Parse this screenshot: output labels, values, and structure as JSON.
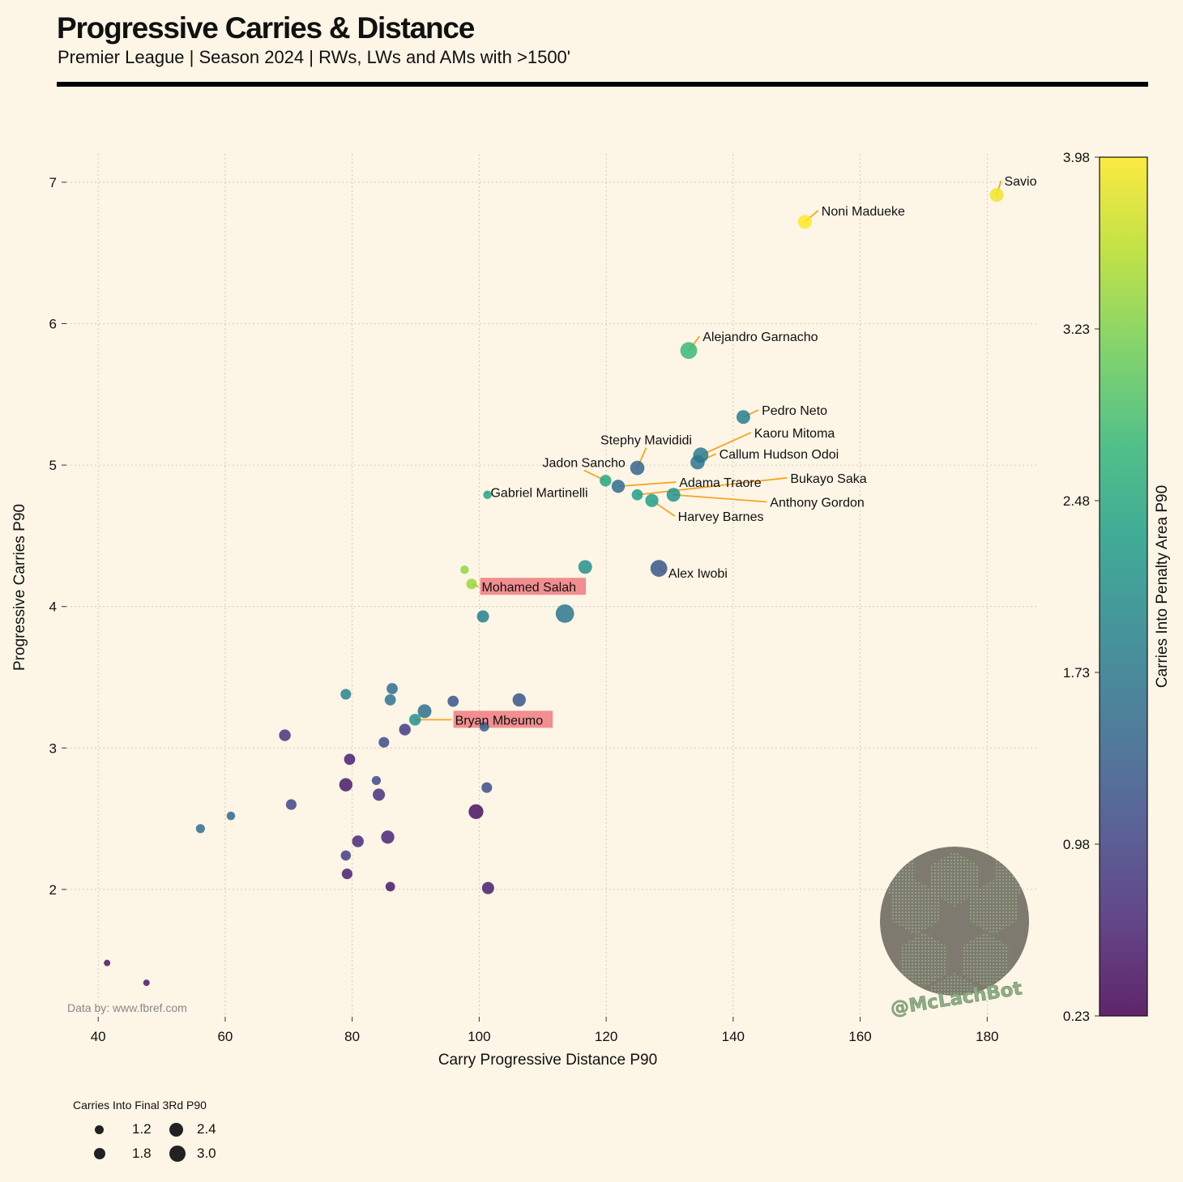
{
  "header": {
    "title": "Progressive Carries & Distance",
    "subtitle": "Premier League | Season 2024 | RWs, LWs and AMs with >1500'"
  },
  "credit": "Data by: www.fbref.com",
  "watermark": "@McLachBot",
  "colors": {
    "background": "#fdf5e6",
    "annotation_line": "#f5a623",
    "highlight_box": "#ee7b80",
    "grid": "#c8c2b4",
    "viridis": [
      "#440154",
      "#482878",
      "#3e4989",
      "#31688e",
      "#26828e",
      "#1f9e89",
      "#35b779",
      "#6ece58",
      "#b5de2b",
      "#fde725"
    ]
  },
  "chart_data": {
    "type": "scatter",
    "xlabel": "Carry Progressive Distance P90",
    "ylabel": "Progressive Carries P90",
    "xlim": [
      35,
      188
    ],
    "ylim": [
      1.1,
      7.2
    ],
    "xticks": [
      40,
      60,
      80,
      100,
      120,
      140,
      160,
      180
    ],
    "yticks": [
      2,
      3,
      4,
      5,
      6,
      7
    ],
    "grid": true,
    "colorbar": {
      "label": "Carries Into Penalty Area P90",
      "min": 0.23,
      "max": 3.98,
      "ticks": [
        "0.23",
        "0.98",
        "1.73",
        "2.48",
        "3.23",
        "3.98"
      ]
    },
    "size_legend": {
      "title": "Carries Into Final 3Rd P90",
      "entries": [
        "1.2",
        "1.8",
        "2.4",
        "3.0"
      ],
      "placement": "bottom-left"
    },
    "points": [
      {
        "name": "Savio",
        "x": 181.5,
        "y": 6.91,
        "c": 3.9,
        "s": 2.4
      },
      {
        "name": "Noni Madueke",
        "x": 151.3,
        "y": 6.72,
        "c": 3.98,
        "s": 2.4
      },
      {
        "name": "Alejandro Garnacho",
        "x": 133.0,
        "y": 5.81,
        "c": 2.75,
        "s": 3.0
      },
      {
        "name": "Pedro Neto",
        "x": 141.6,
        "y": 5.34,
        "c": 1.85,
        "s": 2.4
      },
      {
        "name": "Kaoru Mitoma",
        "x": 134.9,
        "y": 5.07,
        "c": 1.8,
        "s": 2.7
      },
      {
        "name": "Callum Hudson Odoi",
        "x": 134.4,
        "y": 5.02,
        "c": 1.7,
        "s": 2.5
      },
      {
        "name": "Stephy Mavididi",
        "x": 124.9,
        "y": 4.98,
        "c": 1.45,
        "s": 2.5
      },
      {
        "name": "Jadon Sancho",
        "x": 119.9,
        "y": 4.89,
        "c": 2.45,
        "s": 2.0
      },
      {
        "name": "Adama Traore",
        "x": 121.9,
        "y": 4.85,
        "c": 1.55,
        "s": 2.3
      },
      {
        "name": "Bukayo Saka",
        "x": 124.9,
        "y": 4.79,
        "c": 2.3,
        "s": 1.9
      },
      {
        "name": "Anthony Gordon",
        "x": 130.6,
        "y": 4.79,
        "c": 2.15,
        "s": 2.4
      },
      {
        "name": "Harvey Barnes",
        "x": 127.2,
        "y": 4.75,
        "c": 2.35,
        "s": 2.3
      },
      {
        "name": "Gabriel Martinelli",
        "x": 101.3,
        "y": 4.79,
        "c": 2.45,
        "s": 1.4
      },
      {
        "name": "Alex Iwobi",
        "x": 128.3,
        "y": 4.27,
        "c": 1.25,
        "s": 3.0
      },
      {
        "name": "Mohamed Salah",
        "x": 98.8,
        "y": 4.16,
        "c": 3.4,
        "s": 1.8,
        "highlight": true
      },
      {
        "name": "Bryan Mbeumo",
        "x": 89.9,
        "y": 3.2,
        "c": 2.1,
        "s": 2.0,
        "highlight": true
      },
      {
        "name": "",
        "x": 97.7,
        "y": 4.26,
        "c": 3.35,
        "s": 1.4
      },
      {
        "name": "",
        "x": 116.7,
        "y": 4.28,
        "c": 2.1,
        "s": 2.4
      },
      {
        "name": "",
        "x": 113.5,
        "y": 3.95,
        "c": 1.7,
        "s": 3.3
      },
      {
        "name": "",
        "x": 100.6,
        "y": 3.93,
        "c": 1.85,
        "s": 2.1
      },
      {
        "name": "",
        "x": 79.0,
        "y": 3.38,
        "c": 1.95,
        "s": 1.8
      },
      {
        "name": "",
        "x": 86.3,
        "y": 3.42,
        "c": 1.55,
        "s": 1.9
      },
      {
        "name": "",
        "x": 86.0,
        "y": 3.34,
        "c": 1.65,
        "s": 1.9
      },
      {
        "name": "",
        "x": 91.4,
        "y": 3.26,
        "c": 1.6,
        "s": 2.4
      },
      {
        "name": "",
        "x": 95.9,
        "y": 3.33,
        "c": 1.2,
        "s": 1.9
      },
      {
        "name": "",
        "x": 106.3,
        "y": 3.34,
        "c": 1.2,
        "s": 2.3
      },
      {
        "name": "",
        "x": 88.3,
        "y": 3.13,
        "c": 0.9,
        "s": 2.0
      },
      {
        "name": "",
        "x": 100.8,
        "y": 3.15,
        "c": 1.35,
        "s": 1.6
      },
      {
        "name": "",
        "x": 85.0,
        "y": 3.04,
        "c": 1.1,
        "s": 1.8
      },
      {
        "name": "",
        "x": 69.4,
        "y": 3.09,
        "c": 0.8,
        "s": 2.0
      },
      {
        "name": "",
        "x": 79.6,
        "y": 2.92,
        "c": 0.55,
        "s": 1.9
      },
      {
        "name": "",
        "x": 83.8,
        "y": 2.77,
        "c": 1.05,
        "s": 1.5
      },
      {
        "name": "",
        "x": 79.0,
        "y": 2.74,
        "c": 0.5,
        "s": 2.3
      },
      {
        "name": "",
        "x": 84.2,
        "y": 2.67,
        "c": 0.75,
        "s": 2.1
      },
      {
        "name": "",
        "x": 101.2,
        "y": 2.72,
        "c": 1.1,
        "s": 1.8
      },
      {
        "name": "",
        "x": 70.4,
        "y": 2.6,
        "c": 1.05,
        "s": 1.8
      },
      {
        "name": "",
        "x": 60.9,
        "y": 2.52,
        "c": 1.5,
        "s": 1.4
      },
      {
        "name": "",
        "x": 56.1,
        "y": 2.43,
        "c": 1.6,
        "s": 1.5
      },
      {
        "name": "",
        "x": 99.5,
        "y": 2.55,
        "c": 0.4,
        "s": 2.6
      },
      {
        "name": "",
        "x": 85.6,
        "y": 2.37,
        "c": 0.6,
        "s": 2.3
      },
      {
        "name": "",
        "x": 80.9,
        "y": 2.34,
        "c": 0.65,
        "s": 2.0
      },
      {
        "name": "",
        "x": 79.0,
        "y": 2.24,
        "c": 0.9,
        "s": 1.7
      },
      {
        "name": "",
        "x": 79.2,
        "y": 2.11,
        "c": 0.55,
        "s": 1.8
      },
      {
        "name": "",
        "x": 86.0,
        "y": 2.02,
        "c": 0.5,
        "s": 1.6
      },
      {
        "name": "",
        "x": 101.4,
        "y": 2.01,
        "c": 0.55,
        "s": 2.1
      },
      {
        "name": "",
        "x": 41.4,
        "y": 1.48,
        "c": 0.45,
        "s": 1.0
      },
      {
        "name": "",
        "x": 47.6,
        "y": 1.34,
        "c": 0.5,
        "s": 1.0
      }
    ],
    "annotations": [
      {
        "name": "Savio",
        "tx": 182.7,
        "ty": 7.01,
        "anchor": "start"
      },
      {
        "name": "Noni Madueke",
        "tx": 153.9,
        "ty": 6.8,
        "anchor": "start"
      },
      {
        "name": "Alejandro Garnacho",
        "tx": 135.2,
        "ty": 5.91,
        "anchor": "start"
      },
      {
        "name": "Pedro Neto",
        "tx": 144.5,
        "ty": 5.39,
        "anchor": "start"
      },
      {
        "name": "Kaoru Mitoma",
        "tx": 143.3,
        "ty": 5.23,
        "anchor": "start"
      },
      {
        "name": "Callum Hudson Odoi",
        "tx": 137.8,
        "ty": 5.08,
        "anchor": "start"
      },
      {
        "name": "Stephy Mavididi",
        "tx": 126.3,
        "ty": 5.18,
        "anchor": "middle"
      },
      {
        "name": "Jadon Sancho",
        "tx": 116.5,
        "ty": 5.02,
        "anchor": "middle"
      },
      {
        "name": "Adama Traore",
        "tx": 131.5,
        "ty": 4.88,
        "anchor": "start"
      },
      {
        "name": "Bukayo Saka",
        "tx": 149.0,
        "ty": 4.91,
        "anchor": "start"
      },
      {
        "name": "Anthony Gordon",
        "tx": 145.8,
        "ty": 4.74,
        "anchor": "start"
      },
      {
        "name": "Harvey Barnes",
        "tx": 131.3,
        "ty": 4.64,
        "anchor": "start"
      },
      {
        "name": "Gabriel Martinelli",
        "tx": 101.8,
        "ty": 4.81,
        "anchor": "start"
      },
      {
        "name": "Alex Iwobi",
        "tx": 129.8,
        "ty": 4.24,
        "anchor": "start"
      },
      {
        "name": "Mohamed Salah",
        "tx": 100.4,
        "ty": 4.14,
        "anchor": "start"
      },
      {
        "name": "Bryan Mbeumo",
        "tx": 96.2,
        "ty": 3.2,
        "anchor": "start"
      }
    ]
  }
}
